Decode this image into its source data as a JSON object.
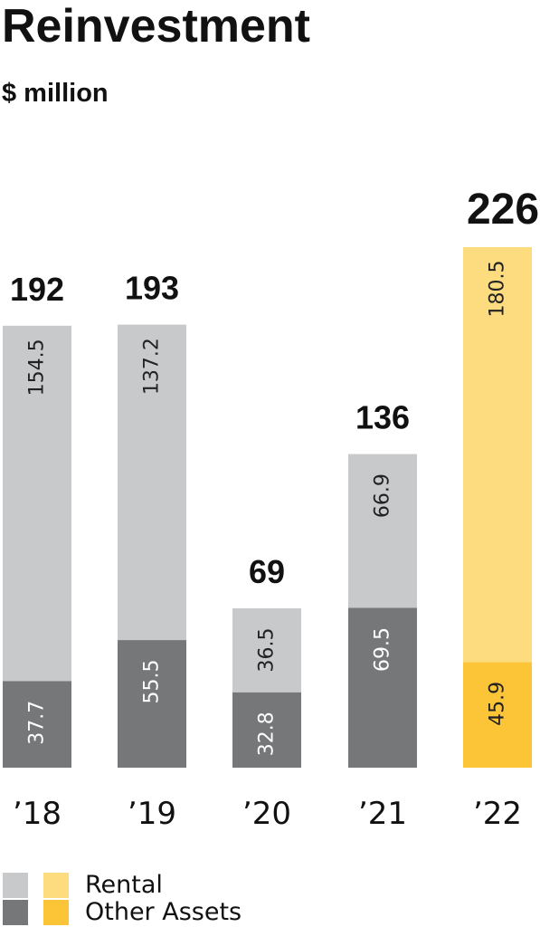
{
  "chart_data": {
    "type": "bar",
    "stacked": true,
    "title": "Reinvestment",
    "subtitle": "$ million",
    "categories": [
      "’18",
      "’19",
      "’20",
      "’21",
      "’22"
    ],
    "totals": [
      "192",
      "193",
      "69",
      "136",
      "226"
    ],
    "series": [
      {
        "name": "Other Assets",
        "values": [
          37.7,
          55.5,
          32.8,
          69.5,
          45.9
        ],
        "labels": [
          "37.7",
          "55.5",
          "32.8",
          "69.5",
          "45.9"
        ]
      },
      {
        "name": "Rental",
        "values": [
          154.5,
          137.2,
          36.5,
          66.9,
          180.5
        ],
        "labels": [
          "154.5",
          "137.2",
          "36.5",
          "66.9",
          "180.5"
        ]
      }
    ],
    "ylim": [
      0,
      226
    ],
    "grid": false,
    "legend_position": "bottom-left",
    "colors": {
      "rental": "#c8c9cb",
      "other_assets": "#767779",
      "rental_highlight": "#fddc7f",
      "other_assets_highlight": "#fcc437",
      "segment_text_light": "#ffffff",
      "segment_text_dark": "#222222"
    },
    "highlight_index": 4
  }
}
